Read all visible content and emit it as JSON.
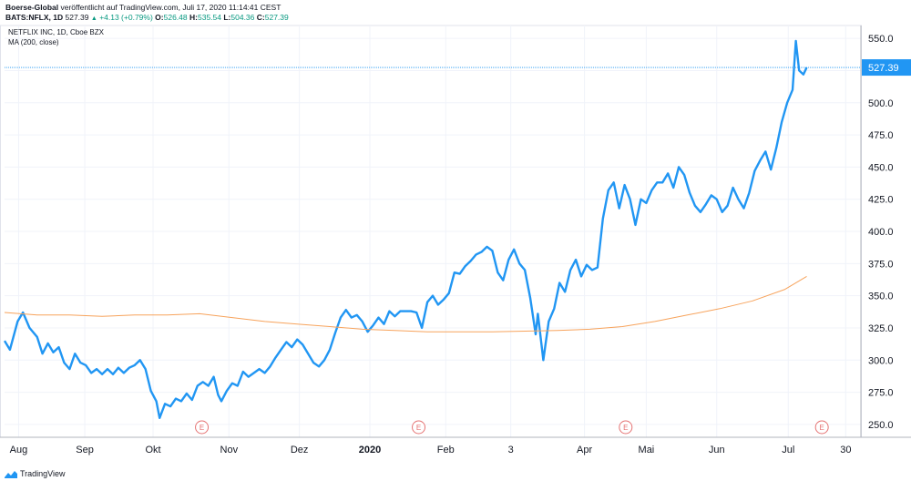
{
  "header": {
    "publisher": "Boerse-Global",
    "published_text": "veröffentlicht auf TradingView.com, Juli 17, 2020 11:14:41 CEST",
    "symbol_line": "BATS:NFLX, 1D",
    "price": "527.39",
    "change": "+4.13 (+0.79%)",
    "o_label": "O:",
    "o": "526.48",
    "h_label": "H:",
    "h": "535.54",
    "l_label": "L:",
    "l": "504.36",
    "c_label": "C:",
    "c": "527.39"
  },
  "legend": {
    "title": "NETFLIX INC, 1D, Cboe BZX",
    "ma": "MA (200, close)"
  },
  "footer": {
    "brand": "TradingView"
  },
  "colors": {
    "price": "#2196f3",
    "ma": "#f7a35c",
    "grid": "#f0f3fa",
    "last_price": "#2196f3",
    "earnings": "#e57373"
  },
  "chart_data": {
    "type": "line",
    "ylim": [
      240,
      560
    ],
    "y_ticks": [
      250,
      275,
      300,
      325,
      350,
      375,
      400,
      425,
      450,
      475,
      500,
      525,
      550
    ],
    "last_price_label": "527.39",
    "last_price": 527.39,
    "x_labels": [
      {
        "label": "Aug",
        "t": 0.13
      },
      {
        "label": "Sep",
        "t": 0.74
      },
      {
        "label": "Okt",
        "t": 1.37
      },
      {
        "label": "Nov",
        "t": 2.07
      },
      {
        "label": "Dez",
        "t": 2.72
      },
      {
        "label": "2020",
        "t": 3.37
      },
      {
        "label": "Feb",
        "t": 4.07
      },
      {
        "label": "3",
        "t": 4.67
      },
      {
        "label": "Apr",
        "t": 5.35
      },
      {
        "label": "Mai",
        "t": 5.92
      },
      {
        "label": "Jun",
        "t": 6.57
      },
      {
        "label": "Jul",
        "t": 7.23
      },
      {
        "label": "30",
        "t": 7.76
      }
    ],
    "earnings_markers": [
      {
        "label": "E",
        "t": 1.82
      },
      {
        "label": "E",
        "t": 3.82
      },
      {
        "label": "E",
        "t": 5.73
      },
      {
        "label": "E",
        "t": 7.54
      }
    ],
    "series": [
      {
        "type": "line",
        "values": [
          [
            0,
            315
          ],
          [
            0.05,
            308
          ],
          [
            0.12,
            330
          ],
          [
            0.17,
            337
          ],
          [
            0.23,
            325
          ],
          [
            0.3,
            318
          ],
          [
            0.35,
            305
          ],
          [
            0.4,
            313
          ],
          [
            0.45,
            306
          ],
          [
            0.5,
            310
          ],
          [
            0.55,
            298
          ],
          [
            0.6,
            293
          ],
          [
            0.65,
            305
          ],
          [
            0.7,
            298
          ],
          [
            0.75,
            296
          ],
          [
            0.8,
            290
          ],
          [
            0.85,
            293
          ],
          [
            0.9,
            289
          ],
          [
            0.95,
            293
          ],
          [
            1.0,
            289
          ],
          [
            1.05,
            294
          ],
          [
            1.1,
            290
          ],
          [
            1.15,
            294
          ],
          [
            1.2,
            296
          ],
          [
            1.25,
            300
          ],
          [
            1.3,
            293
          ],
          [
            1.35,
            276
          ],
          [
            1.4,
            268
          ],
          [
            1.43,
            255
          ],
          [
            1.48,
            266
          ],
          [
            1.53,
            264
          ],
          [
            1.58,
            270
          ],
          [
            1.63,
            268
          ],
          [
            1.68,
            274
          ],
          [
            1.73,
            269
          ],
          [
            1.78,
            280
          ],
          [
            1.83,
            283
          ],
          [
            1.88,
            280
          ],
          [
            1.93,
            287
          ],
          [
            1.97,
            273
          ],
          [
            2.0,
            268
          ],
          [
            2.05,
            276
          ],
          [
            2.1,
            282
          ],
          [
            2.15,
            280
          ],
          [
            2.2,
            291
          ],
          [
            2.25,
            287
          ],
          [
            2.3,
            290
          ],
          [
            2.35,
            293
          ],
          [
            2.4,
            290
          ],
          [
            2.45,
            295
          ],
          [
            2.5,
            302
          ],
          [
            2.55,
            308
          ],
          [
            2.6,
            314
          ],
          [
            2.65,
            310
          ],
          [
            2.7,
            316
          ],
          [
            2.75,
            312
          ],
          [
            2.8,
            305
          ],
          [
            2.85,
            298
          ],
          [
            2.9,
            295
          ],
          [
            2.95,
            300
          ],
          [
            3.0,
            308
          ],
          [
            3.05,
            321
          ],
          [
            3.1,
            333
          ],
          [
            3.15,
            339
          ],
          [
            3.2,
            333
          ],
          [
            3.25,
            335
          ],
          [
            3.3,
            330
          ],
          [
            3.35,
            322
          ],
          [
            3.4,
            327
          ],
          [
            3.45,
            333
          ],
          [
            3.5,
            328
          ],
          [
            3.55,
            338
          ],
          [
            3.6,
            334
          ],
          [
            3.65,
            338
          ],
          [
            3.7,
            338
          ],
          [
            3.75,
            338
          ],
          [
            3.8,
            337
          ],
          [
            3.85,
            325
          ],
          [
            3.9,
            345
          ],
          [
            3.95,
            350
          ],
          [
            4.0,
            343
          ],
          [
            4.05,
            347
          ],
          [
            4.1,
            352
          ],
          [
            4.15,
            368
          ],
          [
            4.2,
            367
          ],
          [
            4.25,
            373
          ],
          [
            4.3,
            377
          ],
          [
            4.35,
            382
          ],
          [
            4.4,
            384
          ],
          [
            4.45,
            388
          ],
          [
            4.5,
            385
          ],
          [
            4.55,
            368
          ],
          [
            4.6,
            362
          ],
          [
            4.65,
            378
          ],
          [
            4.7,
            386
          ],
          [
            4.75,
            375
          ],
          [
            4.8,
            370
          ],
          [
            4.85,
            348
          ],
          [
            4.9,
            320
          ],
          [
            4.92,
            336
          ],
          [
            4.97,
            300
          ],
          [
            5.02,
            330
          ],
          [
            5.07,
            340
          ],
          [
            5.12,
            360
          ],
          [
            5.17,
            353
          ],
          [
            5.22,
            370
          ],
          [
            5.27,
            378
          ],
          [
            5.32,
            365
          ],
          [
            5.37,
            374
          ],
          [
            5.42,
            370
          ],
          [
            5.47,
            372
          ],
          [
            5.52,
            410
          ],
          [
            5.57,
            432
          ],
          [
            5.62,
            438
          ],
          [
            5.67,
            418
          ],
          [
            5.72,
            436
          ],
          [
            5.77,
            425
          ],
          [
            5.82,
            405
          ],
          [
            5.87,
            425
          ],
          [
            5.92,
            422
          ],
          [
            5.97,
            432
          ],
          [
            6.02,
            438
          ],
          [
            6.07,
            438
          ],
          [
            6.12,
            445
          ],
          [
            6.17,
            434
          ],
          [
            6.22,
            450
          ],
          [
            6.27,
            444
          ],
          [
            6.32,
            430
          ],
          [
            6.37,
            420
          ],
          [
            6.42,
            415
          ],
          [
            6.47,
            421
          ],
          [
            6.52,
            428
          ],
          [
            6.57,
            425
          ],
          [
            6.62,
            415
          ],
          [
            6.67,
            420
          ],
          [
            6.72,
            434
          ],
          [
            6.77,
            425
          ],
          [
            6.82,
            418
          ],
          [
            6.87,
            430
          ],
          [
            6.92,
            447
          ],
          [
            6.97,
            455
          ],
          [
            7.02,
            462
          ],
          [
            7.07,
            448
          ],
          [
            7.12,
            465
          ],
          [
            7.17,
            485
          ],
          [
            7.22,
            500
          ],
          [
            7.27,
            510
          ],
          [
            7.3,
            548
          ],
          [
            7.33,
            525
          ],
          [
            7.37,
            522
          ],
          [
            7.4,
            527.39
          ]
        ]
      },
      {
        "type": "line",
        "values": [
          [
            0,
            337
          ],
          [
            0.3,
            335
          ],
          [
            0.6,
            335
          ],
          [
            0.9,
            334
          ],
          [
            1.2,
            335
          ],
          [
            1.5,
            335
          ],
          [
            1.8,
            336
          ],
          [
            2.1,
            333
          ],
          [
            2.4,
            330
          ],
          [
            2.7,
            328
          ],
          [
            3.0,
            326
          ],
          [
            3.3,
            324
          ],
          [
            3.6,
            323
          ],
          [
            3.9,
            322
          ],
          [
            4.2,
            322
          ],
          [
            4.5,
            322
          ],
          [
            4.8,
            322.5
          ],
          [
            5.1,
            323
          ],
          [
            5.4,
            324
          ],
          [
            5.7,
            326
          ],
          [
            6.0,
            330
          ],
          [
            6.3,
            335
          ],
          [
            6.6,
            340
          ],
          [
            6.9,
            346
          ],
          [
            7.2,
            355
          ],
          [
            7.4,
            365
          ]
        ]
      }
    ]
  }
}
